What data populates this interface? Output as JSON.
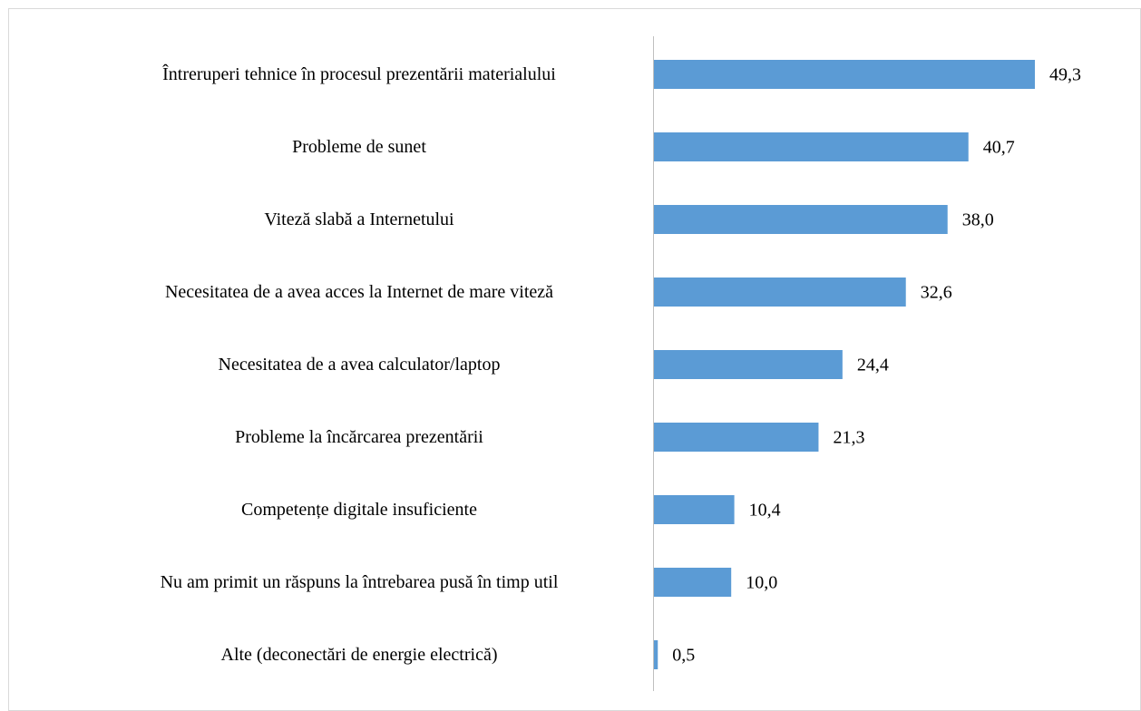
{
  "chart_data": {
    "type": "bar",
    "orientation": "horizontal",
    "categories": [
      "Întreruperi tehnice în procesul prezentării materialului",
      "Probleme de sunet",
      "Viteză slabă a Internetului",
      "Necesitatea de a avea acces la Internet de mare viteză",
      "Necesitatea de a avea calculator/laptop",
      "Probleme la încărcarea prezentării",
      "Competențe digitale insuficiente",
      "Nu am primit un răspuns la întrebarea pusă în timp util",
      "Alte (deconectări de energie electrică)"
    ],
    "values": [
      49.3,
      40.7,
      38.0,
      32.6,
      24.4,
      21.3,
      10.4,
      10.0,
      0.5
    ],
    "value_labels": [
      "49,3",
      "40,7",
      "38,0",
      "32,6",
      "24,4",
      "21,3",
      "10,4",
      "10,0",
      "0,5"
    ],
    "color": "#5b9bd5"
  }
}
